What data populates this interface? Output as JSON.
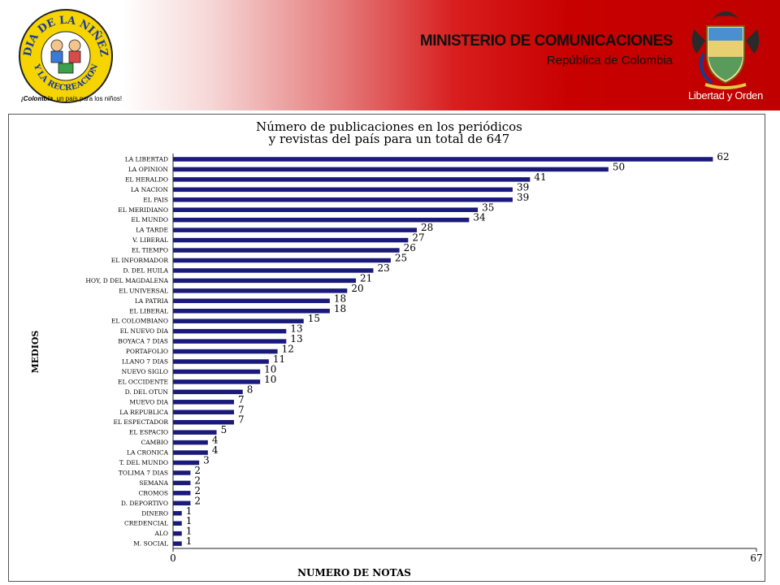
{
  "header": {
    "logo_arc_top": "DIA DE LA NIÑEZ",
    "logo_arc_bottom": "Y LA RECREACION",
    "logo_tag_bold": "¡Colombia",
    "logo_tag_rest": ", un país para los niños!",
    "ministry_title": "MINISTERIO DE COMUNICACIONES",
    "ministry_subtitle": "República de Colombia",
    "motto": "Libertad y Orden"
  },
  "colors": {
    "bar": "#1a1a7a",
    "header_red": "#c80000"
  },
  "chart_data": {
    "type": "bar",
    "orientation": "horizontal",
    "title_lines": [
      "Número de publicaciones en los periódicos",
      "y revistas del país para un total de 647"
    ],
    "xlabel": "NUMERO DE NOTAS",
    "ylabel": "MEDIOS",
    "xlim": [
      0,
      67
    ],
    "x_ticks": [
      "0",
      "67"
    ],
    "categories": [
      "LA LIBERTAD",
      "LA OPINION",
      "EL HERALDO",
      "LA NACION",
      "EL PAIS",
      "EL MERIDIANO",
      "EL MUNDO",
      "LA TARDE",
      "V. LIBERAL",
      "EL TIEMPO",
      "EL INFORMADOR",
      "D. DEL HUILA",
      "HOY, D DEL MAGDALENA",
      "EL UNIVERSAL",
      "LA PATRIA",
      "EL LIBERAL",
      "EL COLOMBIANO",
      "EL NUEVO DIA",
      "BOYACA 7 DIAS",
      "PORTAFOLIO",
      "LLANO 7 DIAS",
      "NUEVO SIGLO",
      "EL OCCIDENTE",
      "D. DEL OTUN",
      "MUEVO DIA",
      "LA REPUBLICA",
      "EL ESPECTADOR",
      "EL ESPACIO",
      "CAMBIO",
      "LA CRONICA",
      "T. DEL MUNDO",
      "TOLIMA 7 DIAS",
      "SEMANA",
      "CROMOS",
      "D. DEPORTIVO",
      "DINERO",
      "CREDENCIAL",
      "ALO",
      "M. SOCIAL"
    ],
    "values": [
      62,
      50,
      41,
      39,
      39,
      35,
      34,
      28,
      27,
      26,
      25,
      23,
      21,
      20,
      18,
      18,
      15,
      13,
      13,
      12,
      11,
      10,
      10,
      8,
      7,
      7,
      7,
      5,
      4,
      4,
      3,
      2,
      2,
      2,
      2,
      1,
      1,
      1,
      1
    ],
    "value_labels": [
      "62",
      "50",
      "41",
      "39",
      "39",
      "35",
      "34",
      "28",
      "27",
      "26",
      "25",
      "23",
      "21",
      "20",
      "18",
      "18",
      "15",
      "13",
      "13",
      "12",
      "11",
      "10",
      "10",
      "8",
      "7",
      "7",
      "7",
      "5",
      "4",
      "4",
      "3",
      "2",
      "2",
      "2",
      "2",
      "1",
      "1",
      "1",
      "1"
    ]
  }
}
